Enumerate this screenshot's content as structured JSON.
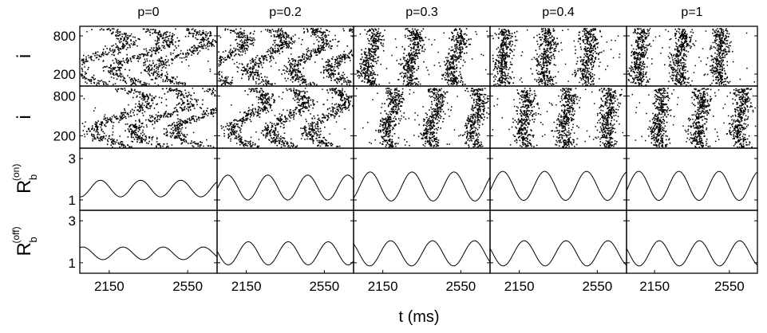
{
  "figure": {
    "columns": [
      "p=0",
      "p=0.2",
      "p=0.3",
      "p=0.4",
      "p=1"
    ],
    "xlabel": "t (ms)",
    "xtick_labels": [
      "2150",
      "2550"
    ]
  },
  "chart_data": [
    {
      "type": "scatter",
      "row": "raster-1",
      "ylabel": "i",
      "ytick_labels": [
        "800",
        "200"
      ],
      "xlim": [
        2000,
        2700
      ],
      "ylim": [
        0,
        1000
      ],
      "panels": [
        {
          "column": "p=0",
          "spike_bands": [
            {
              "center": 2105,
              "amplitude": 35,
              "width": 16
            },
            {
              "center": 2310,
              "amplitude": 35,
              "width": 16
            },
            {
              "center": 2510,
              "amplitude": 35,
              "width": 16
            }
          ]
        },
        {
          "column": "p=0.2",
          "spike_bands": [
            {
              "center": 2055,
              "amplitude": 22,
              "width": 13
            },
            {
              "center": 2260,
              "amplitude": 22,
              "width": 13
            },
            {
              "center": 2465,
              "amplitude": 22,
              "width": 13
            },
            {
              "center": 2665,
              "amplitude": 22,
              "width": 13
            }
          ]
        },
        {
          "column": "p=0.3",
          "spike_bands": [
            {
              "center": 2085,
              "amplitude": 6,
              "width": 11
            },
            {
              "center": 2300,
              "amplitude": 6,
              "width": 11
            },
            {
              "center": 2520,
              "amplitude": 6,
              "width": 11
            }
          ]
        },
        {
          "column": "p=0.4",
          "spike_bands": [
            {
              "center": 2065,
              "amplitude": 3,
              "width": 11
            },
            {
              "center": 2285,
              "amplitude": 3,
              "width": 11
            },
            {
              "center": 2500,
              "amplitude": 3,
              "width": 11
            }
          ]
        },
        {
          "column": "p=1",
          "spike_bands": [
            {
              "center": 2065,
              "amplitude": 3,
              "width": 11
            },
            {
              "center": 2285,
              "amplitude": 3,
              "width": 11
            },
            {
              "center": 2495,
              "amplitude": 3,
              "width": 11
            }
          ]
        }
      ]
    },
    {
      "type": "scatter",
      "row": "raster-2",
      "ylabel": "i",
      "ytick_labels": [
        "800",
        "200"
      ],
      "xlim": [
        2000,
        2700
      ],
      "ylim": [
        0,
        1000
      ],
      "panels": [
        {
          "column": "p=0",
          "spike_bands": [
            {
              "center": 2210,
              "amplitude": 35,
              "width": 16
            },
            {
              "center": 2415,
              "amplitude": 35,
              "width": 16
            },
            {
              "center": 2615,
              "amplitude": 35,
              "width": 16
            }
          ]
        },
        {
          "column": "p=0.2",
          "spike_bands": [
            {
              "center": 2160,
              "amplitude": 22,
              "width": 13
            },
            {
              "center": 2360,
              "amplitude": 22,
              "width": 13
            },
            {
              "center": 2565,
              "amplitude": 22,
              "width": 13
            }
          ]
        },
        {
          "column": "p=0.3",
          "spike_bands": [
            {
              "center": 2190,
              "amplitude": 6,
              "width": 11
            },
            {
              "center": 2410,
              "amplitude": 6,
              "width": 11
            },
            {
              "center": 2625,
              "amplitude": 6,
              "width": 11
            }
          ]
        },
        {
          "column": "p=0.4",
          "spike_bands": [
            {
              "center": 2175,
              "amplitude": 3,
              "width": 11
            },
            {
              "center": 2390,
              "amplitude": 3,
              "width": 11
            },
            {
              "center": 2605,
              "amplitude": 3,
              "width": 11
            }
          ]
        },
        {
          "column": "p=1",
          "spike_bands": [
            {
              "center": 2175,
              "amplitude": 3,
              "width": 11
            },
            {
              "center": 2390,
              "amplitude": 3,
              "width": 11
            },
            {
              "center": 2605,
              "amplitude": 3,
              "width": 11
            }
          ]
        }
      ]
    },
    {
      "type": "line",
      "row": "rb-on",
      "ylabel": "R",
      "ylabel_subscript": "b",
      "ylabel_superscript": "(on)",
      "ytick_labels": [
        "3",
        "1"
      ],
      "yticks": [
        3,
        1
      ],
      "xlim": [
        2000,
        2700
      ],
      "ylim": [
        0.5,
        3.5
      ],
      "panels": [
        {
          "column": "p=0",
          "mean": 1.55,
          "amplitude": 0.4,
          "period": 205,
          "peak_time": 2105
        },
        {
          "column": "p=0.2",
          "mean": 1.6,
          "amplitude": 0.6,
          "period": 205,
          "peak_time": 2055
        },
        {
          "column": "p=0.3",
          "mean": 1.65,
          "amplitude": 0.7,
          "period": 215,
          "peak_time": 2085
        },
        {
          "column": "p=0.4",
          "mean": 1.68,
          "amplitude": 0.7,
          "period": 215,
          "peak_time": 2065
        },
        {
          "column": "p=1",
          "mean": 1.68,
          "amplitude": 0.7,
          "period": 215,
          "peak_time": 2065
        }
      ]
    },
    {
      "type": "line",
      "row": "rb-off",
      "ylabel": "R",
      "ylabel_subscript": "b",
      "ylabel_superscript": "(off)",
      "ytick_labels": [
        "3",
        "1"
      ],
      "yticks": [
        3,
        1
      ],
      "xlim": [
        2000,
        2700
      ],
      "ylim": [
        0.5,
        3.5
      ],
      "panels": [
        {
          "column": "p=0",
          "mean": 1.45,
          "amplitude": 0.3,
          "period": 205,
          "peak_time": 2015
        },
        {
          "column": "p=0.2",
          "mean": 1.45,
          "amplitude": 0.55,
          "period": 205,
          "peak_time": 2160
        },
        {
          "column": "p=0.3",
          "mean": 1.45,
          "amplitude": 0.6,
          "period": 215,
          "peak_time": 2190
        },
        {
          "column": "p=0.4",
          "mean": 1.45,
          "amplitude": 0.6,
          "period": 215,
          "peak_time": 2175
        },
        {
          "column": "p=1",
          "mean": 1.45,
          "amplitude": 0.6,
          "period": 215,
          "peak_time": 2175
        }
      ]
    }
  ]
}
